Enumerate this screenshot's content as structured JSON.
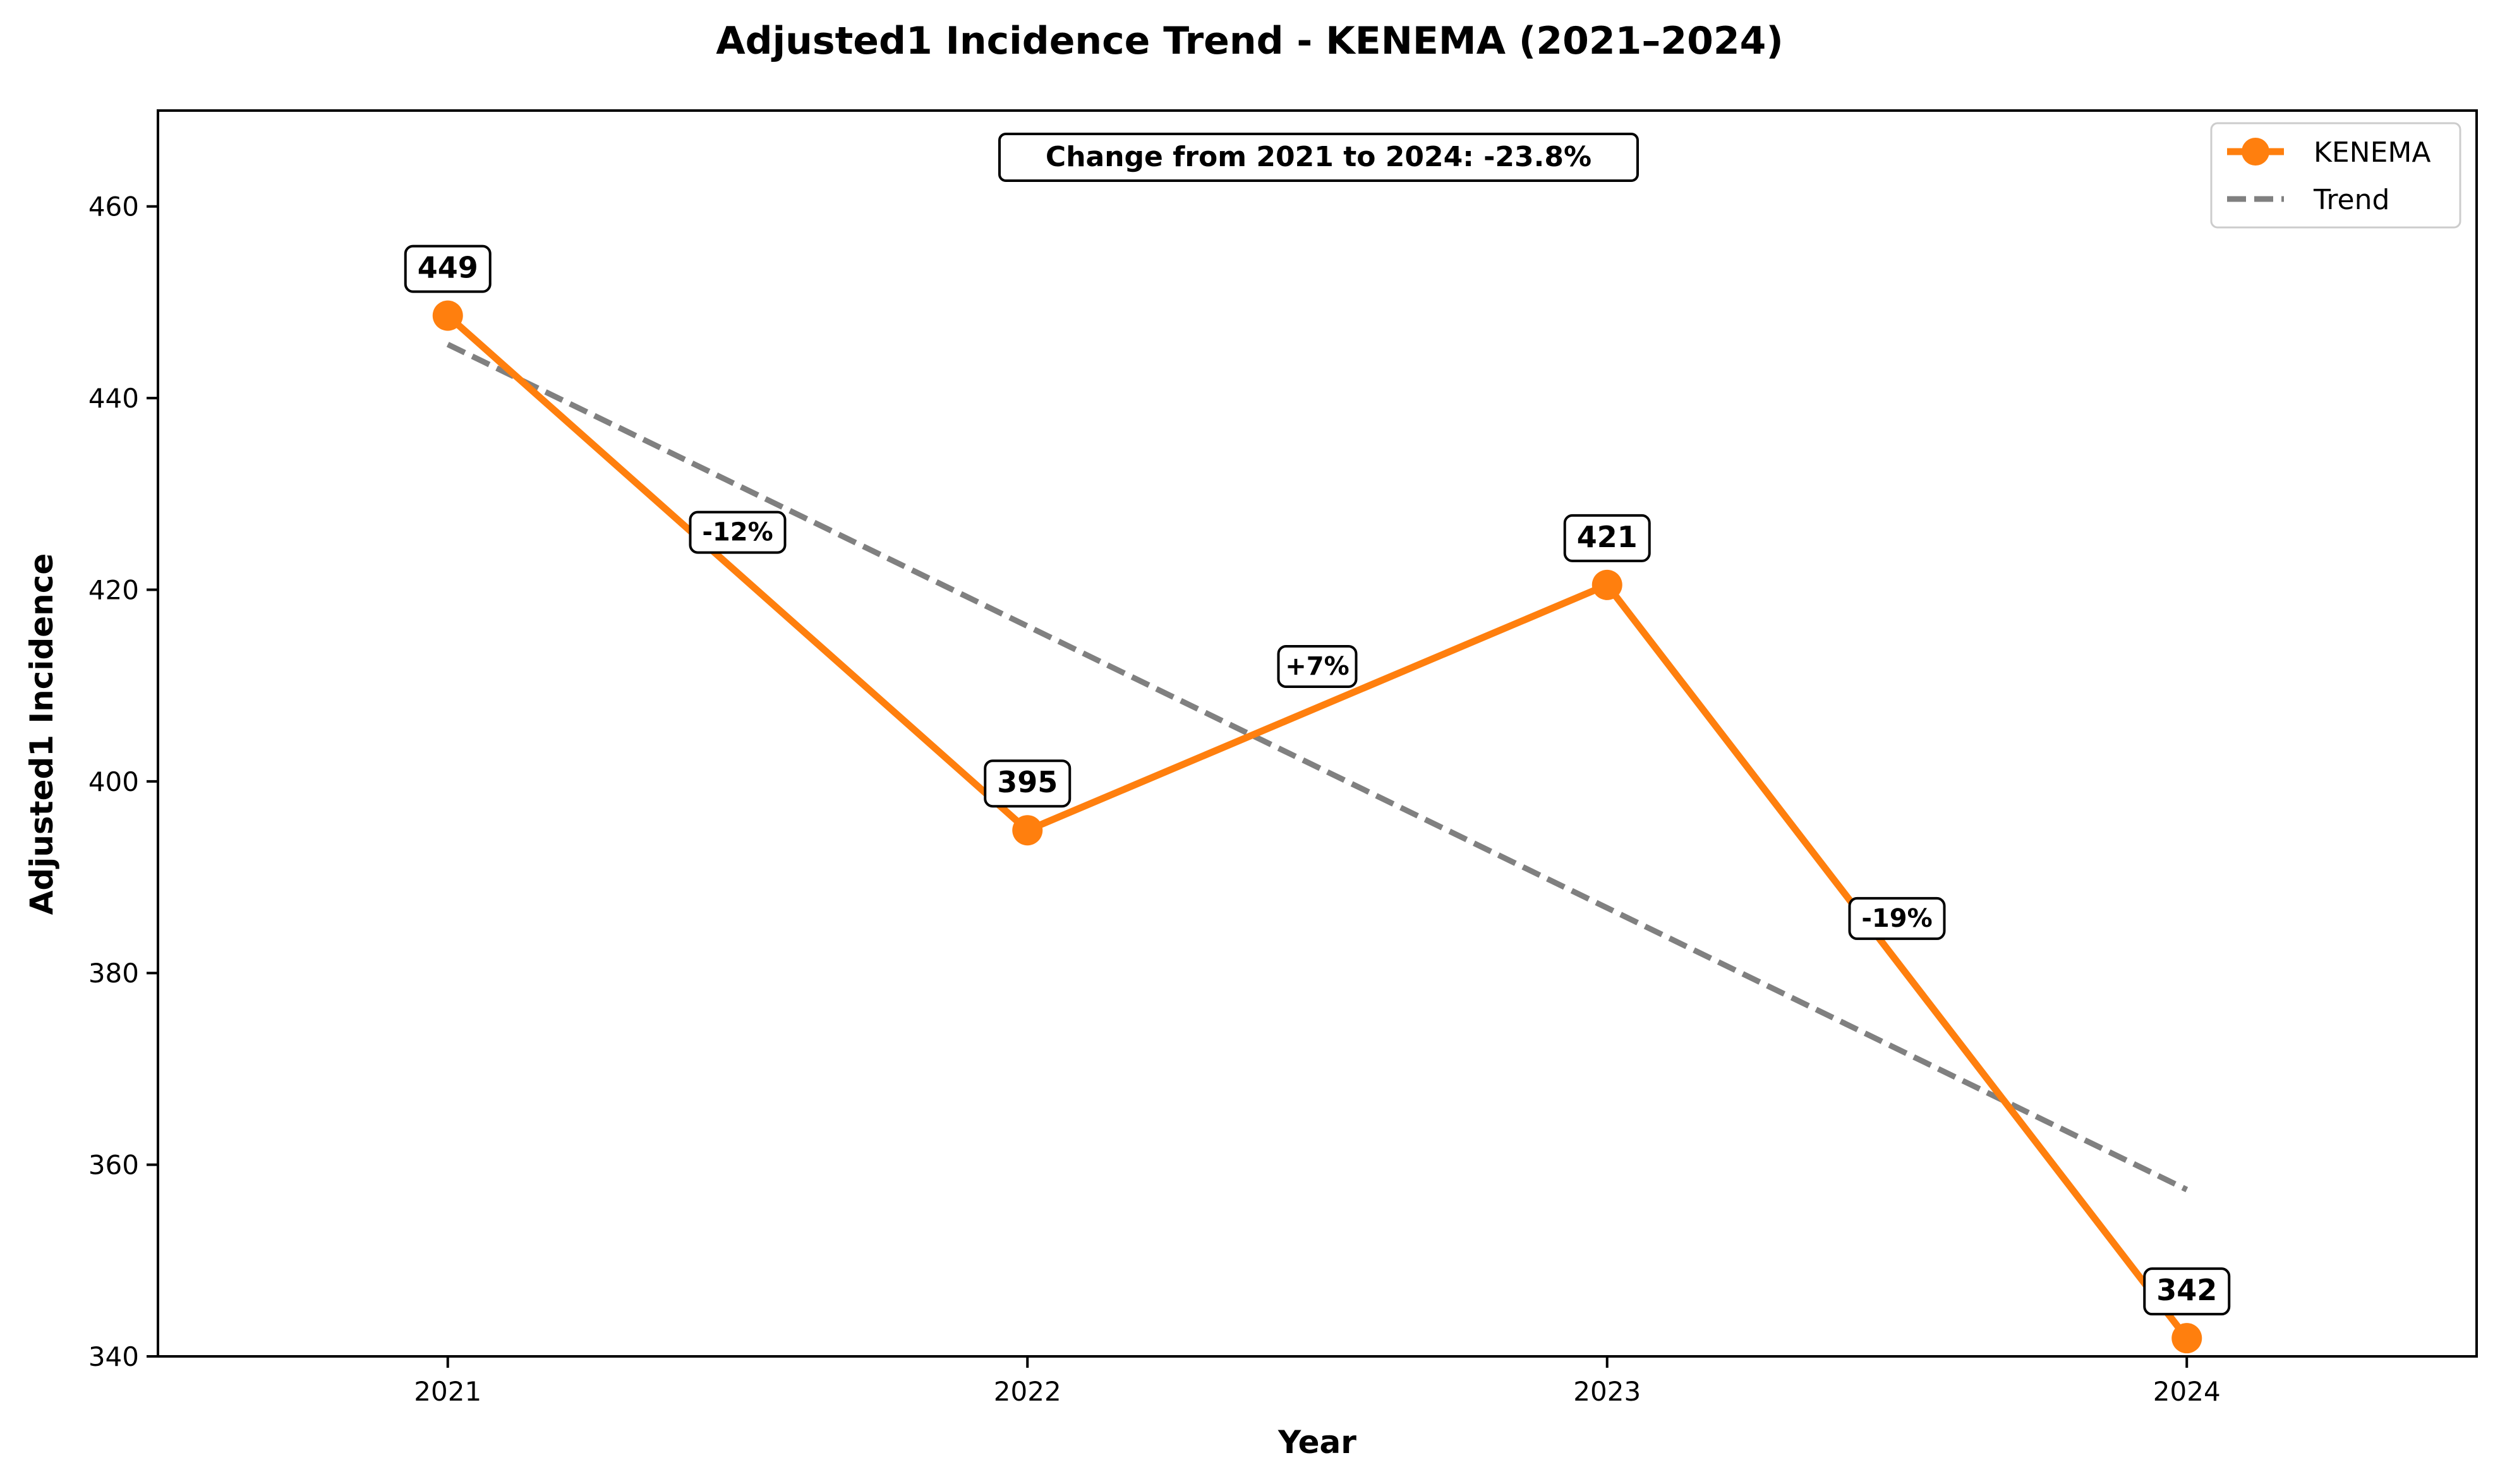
{
  "chart_data": {
    "type": "line",
    "title": "Adjusted1 Incidence Trend - KENEMA (2021–2024)",
    "xlabel": "Year",
    "ylabel": "Adjusted1 Incidence",
    "x": [
      "2021",
      "2022",
      "2023",
      "2024"
    ],
    "x_ticks": [
      "2021",
      "2022",
      "2023",
      "2024"
    ],
    "xlim": [
      2020.5,
      2024.5
    ],
    "ylim": [
      340,
      470
    ],
    "y_ticks": [
      340,
      360,
      380,
      400,
      420,
      440,
      460
    ],
    "y_tick_labels": [
      "340",
      "360",
      "380",
      "400",
      "420",
      "440",
      "460"
    ],
    "grid": false,
    "legend_position": "top-right",
    "series": [
      {
        "name": "KENEMA",
        "x": [
          2021,
          2022,
          2023,
          2024
        ],
        "values": [
          448.6,
          394.9,
          420.5,
          341.9
        ],
        "point_labels": [
          "449",
          "395",
          "421",
          "342"
        ],
        "color": "#ff7f0e",
        "style": "solid-with-markers"
      },
      {
        "name": "Trend",
        "x": [
          2021,
          2024
        ],
        "values": [
          445.6,
          357.4
        ],
        "color": "#808080",
        "style": "dashed"
      }
    ],
    "change_labels": [
      {
        "x": 2021.5,
        "y": 425.0,
        "text": "-12%"
      },
      {
        "x": 2022.5,
        "y": 411.0,
        "text": "+7%"
      },
      {
        "x": 2023.5,
        "y": 384.7,
        "text": "-19%"
      }
    ],
    "annotation": "Change from 2021 to 2024: -23.8%"
  }
}
